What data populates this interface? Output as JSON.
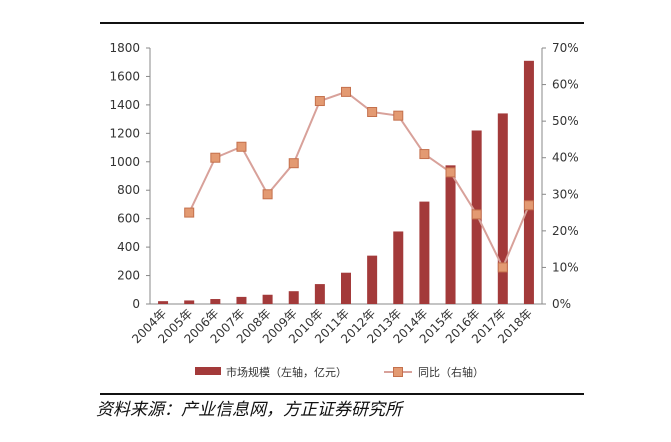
{
  "source_text": "资料来源：产业信息网，方正证券研究所",
  "colors": {
    "bar": "#A33A3A",
    "line": "#D8A19A",
    "marker_fill": "#E39A72",
    "marker_stroke": "#C4704C",
    "axis": "#888888",
    "rule": "#111111"
  },
  "chart_data": {
    "type": "bar+line",
    "categories": [
      "2004年",
      "2005年",
      "2006年",
      "2007年",
      "2008年",
      "2009年",
      "2010年",
      "2011年",
      "2012年",
      "2013年",
      "2014年",
      "2015年",
      "2016年",
      "2017年",
      "2018年"
    ],
    "series": [
      {
        "name": "市场规模（左轴，亿元）",
        "type": "bar",
        "axis": "left",
        "values": [
          20,
          25,
          35,
          50,
          65,
          90,
          140,
          220,
          340,
          510,
          720,
          975,
          1220,
          1340,
          1710
        ]
      },
      {
        "name": "同比（右轴）",
        "type": "line",
        "axis": "right",
        "values": [
          null,
          25,
          40,
          43,
          30,
          38.5,
          55.5,
          58,
          52.5,
          51.5,
          41,
          36,
          24.5,
          10,
          27
        ]
      }
    ],
    "left_axis": {
      "ylim": [
        0,
        1800
      ],
      "ticks": [
        "0",
        "200",
        "400",
        "600",
        "800",
        "1000",
        "1200",
        "1400",
        "1600",
        "1800"
      ]
    },
    "right_axis": {
      "ylim": [
        0,
        70
      ],
      "ticks": [
        "0%",
        "10%",
        "20%",
        "30%",
        "40%",
        "50%",
        "60%",
        "70%"
      ]
    },
    "grid": false,
    "legend_position": "bottom"
  }
}
